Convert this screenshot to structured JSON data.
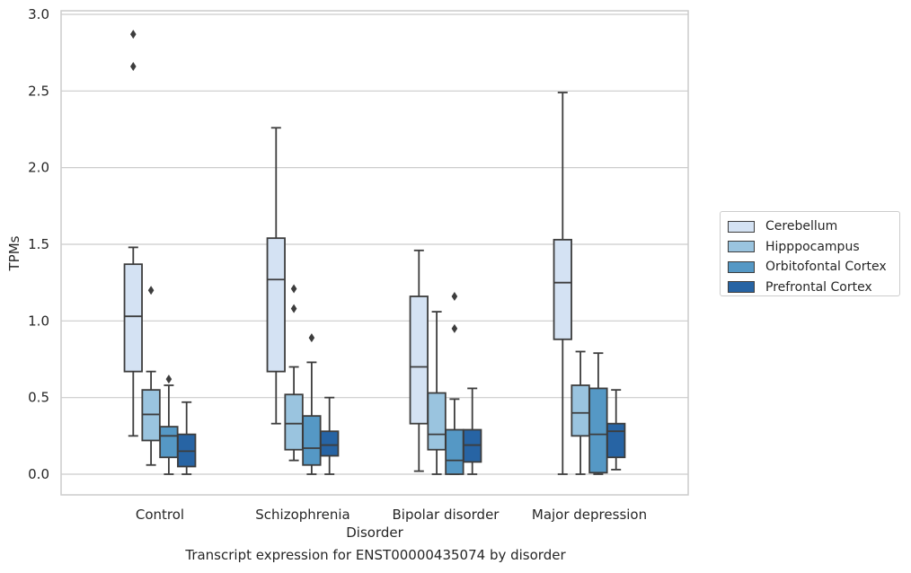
{
  "chart_data": {
    "type": "box",
    "title": "Transcript expression for ENST00000435074 by disorder",
    "xlabel": "Disorder",
    "ylabel": "TPMs",
    "ylim": [
      -0.14,
      3.02
    ],
    "yticks": [
      "0.0",
      "0.5",
      "1.0",
      "1.5",
      "2.0",
      "2.5",
      "3.0"
    ],
    "categories": [
      "Control",
      "Schizophrenia",
      "Bipolar disorder",
      "Major depression"
    ],
    "grid": true,
    "legend_position": "right",
    "series": [
      {
        "name": "Cerebellum",
        "color": "#d4e2f3",
        "boxes": [
          {
            "whisker_low": 0.25,
            "q1": 0.67,
            "median": 1.03,
            "q3": 1.37,
            "whisker_high": 1.48,
            "outliers": [
              2.66,
              2.87
            ]
          },
          {
            "whisker_low": 0.33,
            "q1": 0.67,
            "median": 1.27,
            "q3": 1.54,
            "whisker_high": 2.26,
            "outliers": []
          },
          {
            "whisker_low": 0.02,
            "q1": 0.33,
            "median": 0.7,
            "q3": 1.16,
            "whisker_high": 1.46,
            "outliers": []
          },
          {
            "whisker_low": 0.0,
            "q1": 0.88,
            "median": 1.25,
            "q3": 1.53,
            "whisker_high": 2.49,
            "outliers": []
          }
        ]
      },
      {
        "name": "Hipppocampus",
        "color": "#9ac4df",
        "boxes": [
          {
            "whisker_low": 0.06,
            "q1": 0.22,
            "median": 0.39,
            "q3": 0.55,
            "whisker_high": 0.67,
            "outliers": [
              1.2
            ]
          },
          {
            "whisker_low": 0.09,
            "q1": 0.16,
            "median": 0.33,
            "q3": 0.52,
            "whisker_high": 0.7,
            "outliers": [
              1.08,
              1.21
            ]
          },
          {
            "whisker_low": 0.0,
            "q1": 0.16,
            "median": 0.26,
            "q3": 0.53,
            "whisker_high": 1.06,
            "outliers": []
          },
          {
            "whisker_low": 0.0,
            "q1": 0.25,
            "median": 0.4,
            "q3": 0.58,
            "whisker_high": 0.8,
            "outliers": []
          }
        ]
      },
      {
        "name": "Orbitofontal Cortex",
        "color": "#5598c5",
        "boxes": [
          {
            "whisker_low": 0.0,
            "q1": 0.11,
            "median": 0.25,
            "q3": 0.31,
            "whisker_high": 0.58,
            "outliers": [
              0.62
            ]
          },
          {
            "whisker_low": 0.0,
            "q1": 0.06,
            "median": 0.17,
            "q3": 0.38,
            "whisker_high": 0.73,
            "outliers": [
              0.89
            ]
          },
          {
            "whisker_low": 0.0,
            "q1": 0.0,
            "median": 0.09,
            "q3": 0.29,
            "whisker_high": 0.49,
            "outliers": [
              0.95,
              1.16
            ]
          },
          {
            "whisker_low": 0.0,
            "q1": 0.01,
            "median": 0.26,
            "q3": 0.56,
            "whisker_high": 0.79,
            "outliers": []
          }
        ]
      },
      {
        "name": "Prefrontal Cortex",
        "color": "#2764a4",
        "boxes": [
          {
            "whisker_low": 0.0,
            "q1": 0.05,
            "median": 0.15,
            "q3": 0.26,
            "whisker_high": 0.47,
            "outliers": []
          },
          {
            "whisker_low": 0.0,
            "q1": 0.12,
            "median": 0.19,
            "q3": 0.28,
            "whisker_high": 0.5,
            "outliers": []
          },
          {
            "whisker_low": 0.0,
            "q1": 0.08,
            "median": 0.19,
            "q3": 0.29,
            "whisker_high": 0.56,
            "outliers": []
          },
          {
            "whisker_low": 0.03,
            "q1": 0.11,
            "median": 0.28,
            "q3": 0.33,
            "whisker_high": 0.55,
            "outliers": []
          }
        ]
      }
    ]
  }
}
